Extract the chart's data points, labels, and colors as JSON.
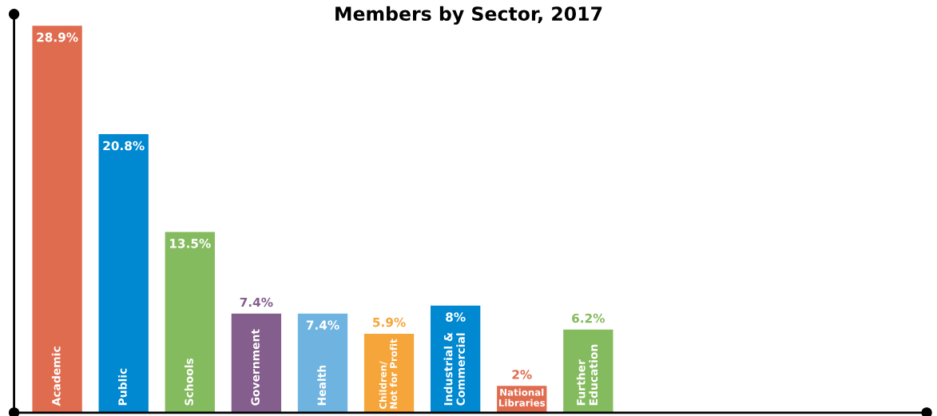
{
  "chart_data": {
    "type": "bar",
    "title": "Members by Sector, 2017",
    "categories": [
      "Academic",
      "Public",
      "Schools",
      "Government",
      "Health",
      "Children/\nNot for Profit",
      "Industrial &\nCommercial",
      "National\nLibraries",
      "Further\nEducation"
    ],
    "values": [
      28.9,
      20.8,
      13.5,
      7.4,
      7.4,
      5.9,
      8,
      2,
      6.2
    ],
    "value_labels": [
      "28.9%",
      "20.8%",
      "13.5%",
      "7.4%",
      "7.4%",
      "5.9%",
      "8%",
      "2%",
      "6.2%"
    ],
    "colors": [
      "#e06c50",
      "#0088d1",
      "#85bb5f",
      "#845e8c",
      "#6fb3e1",
      "#f6a53b",
      "#0088d1",
      "#e06c50",
      "#85bb5f"
    ],
    "legend": false
  }
}
